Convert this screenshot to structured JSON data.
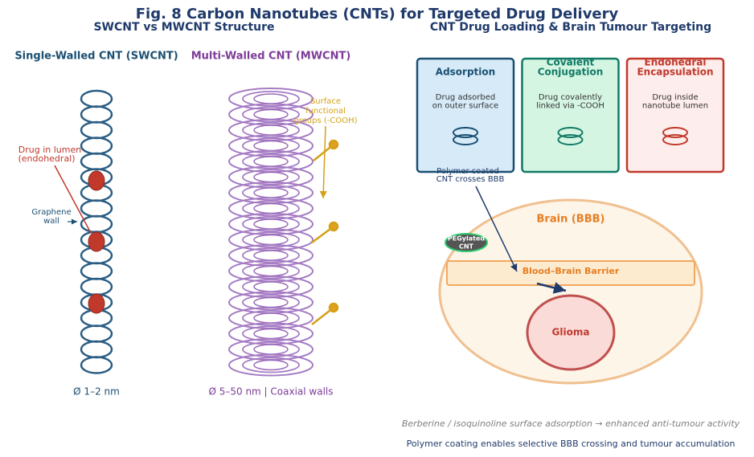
{
  "header": {
    "title": "Fig. 8  Carbon Nanotubes (CNTs) for Targeted Drug Delivery"
  },
  "left_panel": {
    "title": "SWCNT vs MWCNT Structure",
    "swcnt": {
      "label": "Single-Walled CNT (SWCNT)",
      "lumen_note": [
        "Drug in lumen",
        "(endohedral)"
      ],
      "wall_note": [
        "Graphene",
        "wall"
      ],
      "diameter": "Ø 1–2 nm"
    },
    "mwcnt": {
      "label": "Multi-Walled CNT (MWCNT)",
      "surface_note": [
        "Surface",
        "functional",
        "groups (-COOH)"
      ],
      "diameter": "Ø 5–50 nm  |  Coaxial walls"
    }
  },
  "right_panel": {
    "title": "CNT Drug Loading & Brain Tumour Targeting",
    "cards": [
      {
        "title": [
          "Adsorption"
        ],
        "lines": [
          "Drug adsorbed",
          "on outer surface"
        ]
      },
      {
        "title": [
          "Covalent",
          "Conjugation"
        ],
        "lines": [
          "Drug covalently",
          "linked via -COOH"
        ]
      },
      {
        "title": [
          "Endohedral",
          "Encapsulation"
        ],
        "lines": [
          "Drug inside",
          "nanotube lumen"
        ]
      }
    ],
    "crossing_note": [
      "Polymer-coated",
      "CNT crosses BBB"
    ],
    "pegylated": [
      "PEGylated",
      "CNT"
    ],
    "brain": "Brain (BBB)",
    "barrier": "Blood–Brain Barrier",
    "tumour": "Glioma"
  },
  "footnotes": [
    "Berberine / isoquinoline surface adsorption → enhanced anti-tumour activity",
    "Polymer coating enables selective BBB crossing and tumour accumulation"
  ]
}
